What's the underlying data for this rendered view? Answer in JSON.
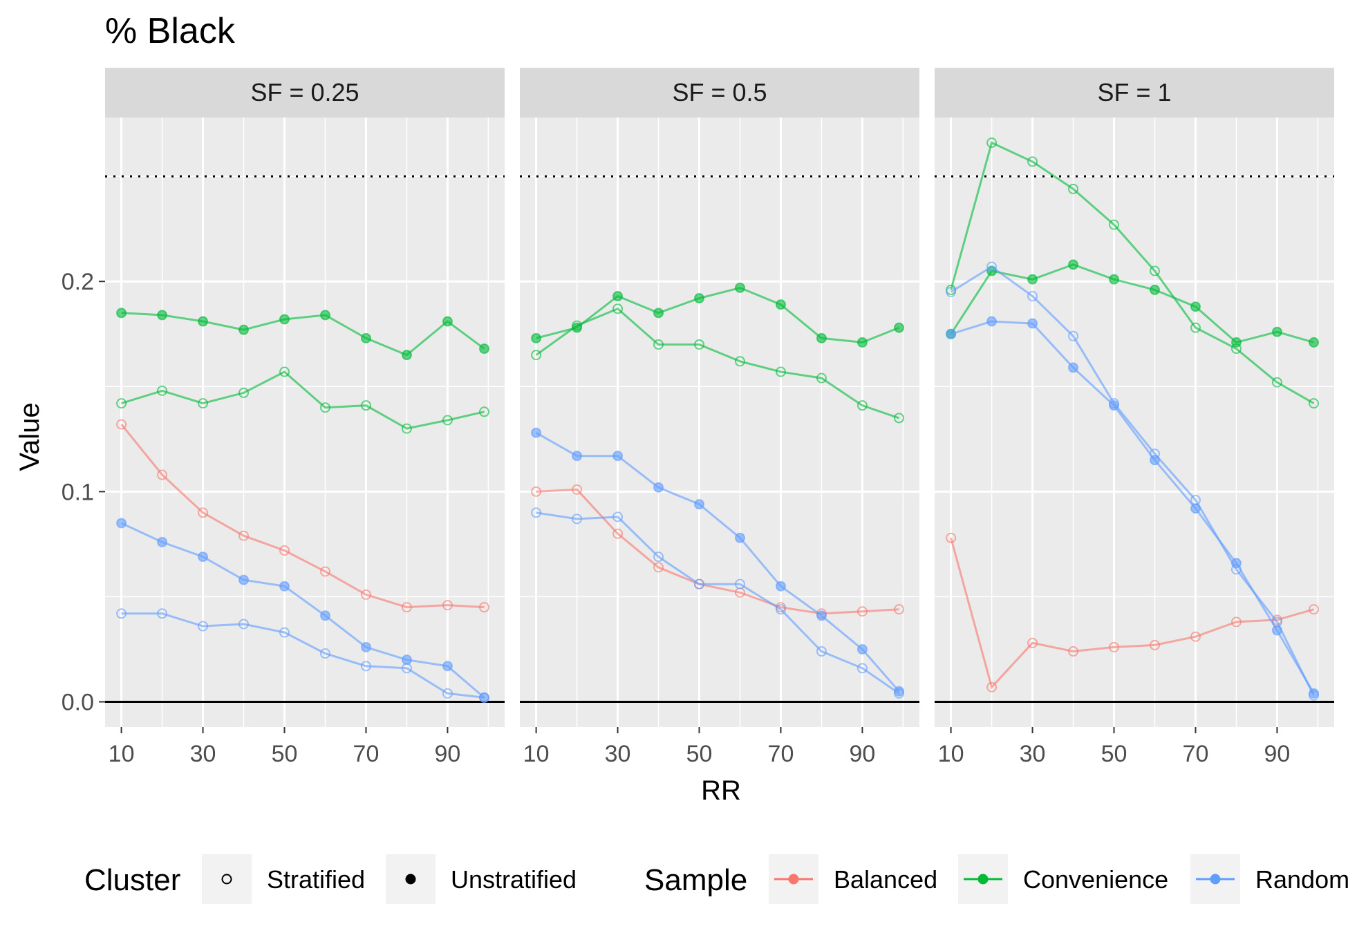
{
  "chart_data": {
    "type": "line",
    "title": "% Black",
    "xlabel": "RR",
    "ylabel": "Value",
    "x": [
      10,
      20,
      30,
      40,
      50,
      60,
      70,
      80,
      90,
      99
    ],
    "x_ticks": [
      "10",
      "30",
      "50",
      "70",
      "90"
    ],
    "y_ticks": [
      "0.0",
      "0.1",
      "0.2"
    ],
    "xlim": [
      6,
      104
    ],
    "ylim": [
      -0.012,
      0.278
    ],
    "reference_lines": [
      {
        "y": 0.25,
        "style": "dotted"
      },
      {
        "y": 0.0,
        "style": "solid"
      }
    ],
    "grid": true,
    "legend_position": "bottom",
    "colors": {
      "Balanced": "#F8766D",
      "Convenience": "#00BA38",
      "Random": "#619CFF",
      "panel_bg": "#EBEBEB",
      "strip_bg": "#D9D9D9"
    },
    "panels": [
      {
        "label": "SF = 0.25",
        "series": [
          {
            "sample": "Balanced",
            "cluster": "Stratified",
            "values": [
              0.132,
              0.108,
              0.09,
              0.079,
              0.072,
              0.062,
              0.051,
              0.045,
              0.046,
              0.045
            ]
          },
          {
            "sample": "Convenience",
            "cluster": "Stratified",
            "values": [
              0.142,
              0.148,
              0.142,
              0.147,
              0.157,
              0.14,
              0.141,
              0.13,
              0.134,
              0.138
            ]
          },
          {
            "sample": "Convenience",
            "cluster": "Unstratified",
            "values": [
              0.185,
              0.184,
              0.181,
              0.177,
              0.182,
              0.184,
              0.173,
              0.165,
              0.181,
              0.168
            ]
          },
          {
            "sample": "Random",
            "cluster": "Stratified",
            "values": [
              0.042,
              0.042,
              0.036,
              0.037,
              0.033,
              0.023,
              0.017,
              0.016,
              0.004,
              0.002
            ]
          },
          {
            "sample": "Random",
            "cluster": "Unstratified",
            "values": [
              0.085,
              0.076,
              0.069,
              0.058,
              0.055,
              0.041,
              0.026,
              0.02,
              0.017,
              0.002
            ]
          }
        ]
      },
      {
        "label": "SF = 0.5",
        "series": [
          {
            "sample": "Balanced",
            "cluster": "Stratified",
            "values": [
              0.1,
              0.101,
              0.08,
              0.064,
              0.056,
              0.052,
              0.045,
              0.042,
              0.043,
              0.044
            ]
          },
          {
            "sample": "Convenience",
            "cluster": "Stratified",
            "values": [
              0.165,
              0.179,
              0.187,
              0.17,
              0.17,
              0.162,
              0.157,
              0.154,
              0.141,
              0.135
            ]
          },
          {
            "sample": "Convenience",
            "cluster": "Unstratified",
            "values": [
              0.173,
              0.178,
              0.193,
              0.185,
              0.192,
              0.197,
              0.189,
              0.173,
              0.171,
              0.178
            ]
          },
          {
            "sample": "Random",
            "cluster": "Stratified",
            "values": [
              0.09,
              0.087,
              0.088,
              0.069,
              0.056,
              0.056,
              0.044,
              0.024,
              0.016,
              0.004
            ]
          },
          {
            "sample": "Random",
            "cluster": "Unstratified",
            "values": [
              0.128,
              0.117,
              0.117,
              0.102,
              0.094,
              0.078,
              0.055,
              0.041,
              0.025,
              0.005
            ]
          }
        ]
      },
      {
        "label": "SF = 1",
        "series": [
          {
            "sample": "Balanced",
            "cluster": "Stratified",
            "values": [
              0.078,
              0.007,
              0.028,
              0.024,
              0.026,
              0.027,
              0.031,
              0.038,
              0.039,
              0.044
            ]
          },
          {
            "sample": "Convenience",
            "cluster": "Stratified",
            "values": [
              0.196,
              0.266,
              0.257,
              0.244,
              0.227,
              0.205,
              0.178,
              0.168,
              0.152,
              0.142
            ]
          },
          {
            "sample": "Convenience",
            "cluster": "Unstratified",
            "values": [
              0.175,
              0.205,
              0.201,
              0.208,
              0.201,
              0.196,
              0.188,
              0.171,
              0.176,
              0.171
            ]
          },
          {
            "sample": "Random",
            "cluster": "Stratified",
            "values": [
              0.195,
              0.207,
              0.193,
              0.174,
              0.142,
              0.118,
              0.096,
              0.063,
              0.038,
              0.003
            ]
          },
          {
            "sample": "Random",
            "cluster": "Unstratified",
            "values": [
              0.175,
              0.181,
              0.18,
              0.159,
              0.141,
              0.115,
              0.092,
              0.066,
              0.034,
              0.004
            ]
          }
        ]
      }
    ],
    "legends": [
      {
        "title": "Cluster",
        "entries": [
          {
            "label": "Stratified",
            "marker": "open-circle"
          },
          {
            "label": "Unstratified",
            "marker": "filled-circle"
          }
        ]
      },
      {
        "title": "Sample",
        "entries": [
          {
            "label": "Balanced",
            "color": "#F8766D"
          },
          {
            "label": "Convenience",
            "color": "#00BA38"
          },
          {
            "label": "Random",
            "color": "#619CFF"
          }
        ]
      }
    ]
  }
}
